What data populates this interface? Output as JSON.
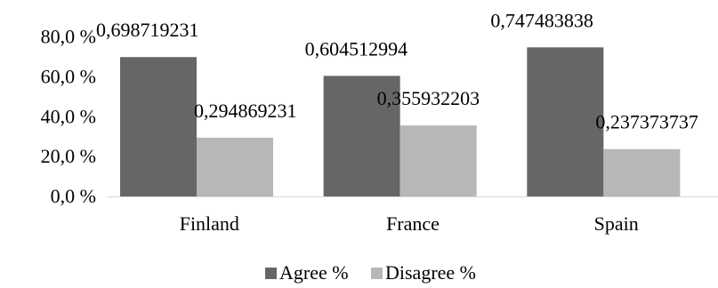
{
  "chart_data": {
    "type": "bar",
    "title": "",
    "xlabel": "",
    "ylabel": "",
    "categories": [
      "Finland",
      "France",
      "Spain"
    ],
    "series": [
      {
        "name": "Agree %",
        "values": [
          0.698719231,
          0.604512994,
          0.747483838
        ],
        "labels": [
          "0,698719231",
          "0,604512994",
          "0,747483838"
        ],
        "color": "#666666"
      },
      {
        "name": "Disagree %",
        "values": [
          0.294869231,
          0.355932203,
          0.237373737
        ],
        "labels": [
          "0,294869231",
          "0,355932203",
          "0,237373737"
        ],
        "color": "#b7b7b7"
      }
    ],
    "ylim": [
      0,
      0.8
    ],
    "yticks": [
      0,
      0.2,
      0.4,
      0.6,
      0.8
    ],
    "ytick_labels": [
      "0,0 %",
      "20,0 %",
      "40,0 %",
      "60,0 %",
      "80,0 %"
    ],
    "grid": false,
    "legend_position": "bottom"
  }
}
